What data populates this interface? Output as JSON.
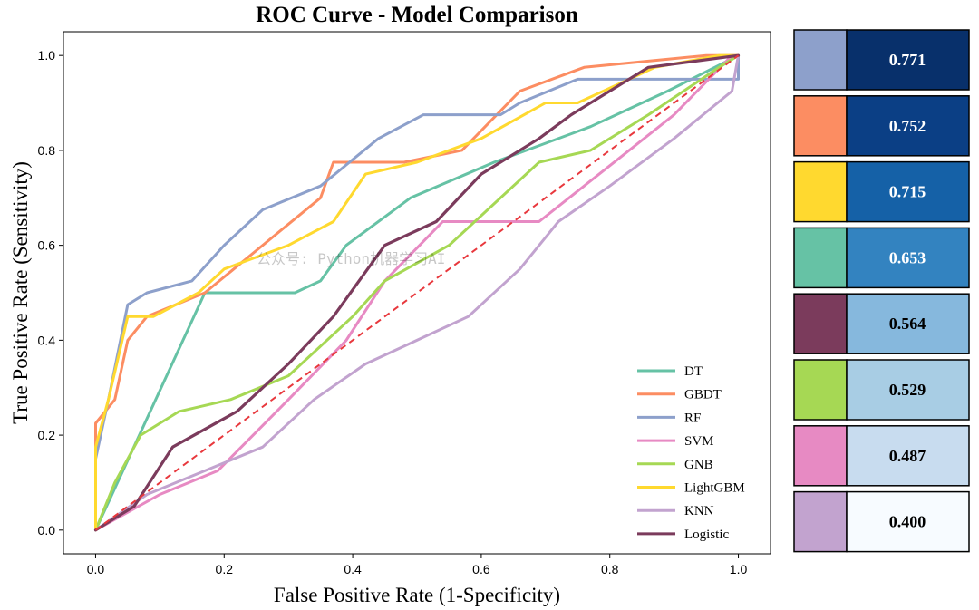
{
  "chart_data": {
    "type": "line",
    "title": "ROC Curve - Model Comparison",
    "xlabel": "False Positive Rate (1-Specificity)",
    "ylabel": "True Positive Rate (Sensitivity)",
    "xlim": [
      -0.05,
      1.05
    ],
    "ylim": [
      -0.05,
      1.05
    ],
    "xticks": [
      "0.0",
      "0.2",
      "0.4",
      "0.6",
      "0.8",
      "1.0"
    ],
    "yticks": [
      "0.0",
      "0.2",
      "0.4",
      "0.6",
      "0.8",
      "1.0"
    ],
    "legend_position": "lower-right",
    "watermark": "公众号: Python机器学习AI",
    "diagonal": {
      "x": [
        0,
        1
      ],
      "y": [
        0,
        1
      ],
      "color": "#e8383d",
      "style": "dashed"
    },
    "series": [
      {
        "name": "DT",
        "color": "#66c2a5",
        "x": [
          0,
          0.17,
          0.31,
          0.35,
          0.39,
          0.49,
          0.62,
          0.77,
          0.89,
          1
        ],
        "y": [
          0,
          0.5,
          0.5,
          0.525,
          0.6,
          0.7,
          0.775,
          0.85,
          0.925,
          1
        ]
      },
      {
        "name": "GBDT",
        "color": "#fc8d62",
        "x": [
          0,
          0,
          0.03,
          0.05,
          0.08,
          0.17,
          0.26,
          0.35,
          0.37,
          0.48,
          0.57,
          0.66,
          0.76,
          0.95,
          1
        ],
        "y": [
          0,
          0.225,
          0.275,
          0.4,
          0.45,
          0.5,
          0.6,
          0.7,
          0.775,
          0.775,
          0.8,
          0.925,
          0.975,
          1,
          1
        ]
      },
      {
        "name": "RF",
        "color": "#8da0cb",
        "x": [
          0,
          0,
          0.02,
          0.05,
          0.08,
          0.15,
          0.2,
          0.26,
          0.35,
          0.44,
          0.51,
          0.63,
          0.66,
          0.75,
          0.86,
          1,
          1
        ],
        "y": [
          0,
          0.15,
          0.275,
          0.475,
          0.5,
          0.525,
          0.6,
          0.675,
          0.725,
          0.825,
          0.875,
          0.875,
          0.9,
          0.95,
          0.95,
          0.95,
          1
        ]
      },
      {
        "name": "SVM",
        "color": "#e78ac3",
        "x": [
          0,
          0.1,
          0.19,
          0.3,
          0.39,
          0.45,
          0.54,
          0.69,
          0.76,
          0.83,
          0.9,
          0.99,
          1
        ],
        "y": [
          0,
          0.075,
          0.125,
          0.275,
          0.4,
          0.525,
          0.65,
          0.65,
          0.725,
          0.8,
          0.875,
          1,
          1
        ]
      },
      {
        "name": "GNB",
        "color": "#a6d854",
        "x": [
          0,
          0.03,
          0.07,
          0.13,
          0.21,
          0.3,
          0.4,
          0.45,
          0.55,
          0.69,
          0.77,
          0.86,
          0.97,
          1
        ],
        "y": [
          0,
          0.1,
          0.2,
          0.25,
          0.275,
          0.325,
          0.45,
          0.525,
          0.6,
          0.775,
          0.8,
          0.875,
          0.975,
          1
        ]
      },
      {
        "name": "LightGBM",
        "color": "#ffd92f",
        "x": [
          0,
          0,
          0.02,
          0.05,
          0.09,
          0.16,
          0.2,
          0.3,
          0.37,
          0.42,
          0.5,
          0.6,
          0.7,
          0.75,
          0.87,
          0.97,
          1
        ],
        "y": [
          0,
          0.175,
          0.275,
          0.45,
          0.45,
          0.5,
          0.55,
          0.6,
          0.65,
          0.75,
          0.775,
          0.825,
          0.9,
          0.9,
          0.975,
          1,
          1
        ]
      },
      {
        "name": "KNN",
        "color": "#c2a3cf",
        "x": [
          0,
          0.08,
          0.17,
          0.26,
          0.34,
          0.42,
          0.5,
          0.58,
          0.66,
          0.72,
          0.8,
          0.9,
          0.99,
          1
        ],
        "y": [
          0,
          0.075,
          0.125,
          0.175,
          0.275,
          0.35,
          0.4,
          0.45,
          0.55,
          0.65,
          0.725,
          0.825,
          0.925,
          1
        ]
      },
      {
        "name": "Logistic",
        "color": "#7b3b5c",
        "x": [
          0,
          0.06,
          0.12,
          0.22,
          0.3,
          0.37,
          0.45,
          0.53,
          0.6,
          0.69,
          0.74,
          0.86,
          1
        ],
        "y": [
          0,
          0.05,
          0.175,
          0.25,
          0.35,
          0.45,
          0.6,
          0.65,
          0.75,
          0.825,
          0.875,
          0.975,
          1
        ]
      }
    ],
    "auc_panel": [
      {
        "model": "RF",
        "auc": "0.771",
        "swatch": "#8da0cb",
        "fill": "#08306b",
        "text_color": "#ffffff"
      },
      {
        "model": "GBDT",
        "auc": "0.752",
        "swatch": "#fc8d62",
        "fill": "#0b3f85",
        "text_color": "#ffffff"
      },
      {
        "model": "LightGBM",
        "auc": "0.715",
        "swatch": "#ffd92f",
        "fill": "#1561a7",
        "text_color": "#ffffff"
      },
      {
        "model": "DT",
        "auc": "0.653",
        "swatch": "#66c2a5",
        "fill": "#3383c0",
        "text_color": "#ffffff"
      },
      {
        "model": "Logistic",
        "auc": "0.564",
        "swatch": "#7b3b5c",
        "fill": "#86b8dd",
        "text_color": "#000000"
      },
      {
        "model": "GNB",
        "auc": "0.529",
        "swatch": "#a6d854",
        "fill": "#a8cde4",
        "text_color": "#000000"
      },
      {
        "model": "SVM",
        "auc": "0.487",
        "swatch": "#e78ac3",
        "fill": "#c8dcef",
        "text_color": "#000000"
      },
      {
        "model": "KNN",
        "auc": "0.400",
        "swatch": "#c2a3cf",
        "fill": "#f7fbff",
        "text_color": "#000000"
      }
    ]
  }
}
